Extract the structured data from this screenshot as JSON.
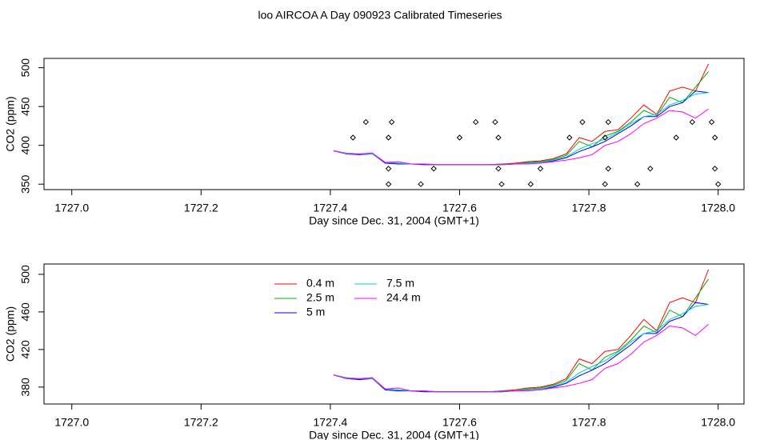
{
  "chart_data": [
    {
      "type": "line",
      "title": "loo AIRCOA A  Day 090923  Calibrated Timeseries",
      "xlabel": "Day since Dec. 31, 2004 (GMT+1)",
      "ylabel": "CO2 (ppm)",
      "xlim": [
        1726.957,
        1728.04
      ],
      "ylim": [
        343,
        512
      ],
      "xticks": [
        {
          "value": 1727,
          "label": "1727.0"
        },
        {
          "value": 1727.2,
          "label": "1727.2"
        },
        {
          "value": 1727.4,
          "label": "1727.4"
        },
        {
          "value": 1727.6,
          "label": "1727.6"
        },
        {
          "value": 1727.8,
          "label": "1727.8"
        },
        {
          "value": 1728,
          "label": "1728.0"
        }
      ],
      "yticks": [
        350,
        400,
        450,
        500
      ],
      "x": [
        1727.405,
        1727.425,
        1727.445,
        1727.465,
        1727.485,
        1727.505,
        1727.525,
        1727.545,
        1727.565,
        1727.585,
        1727.605,
        1727.625,
        1727.645,
        1727.665,
        1727.685,
        1727.705,
        1727.725,
        1727.745,
        1727.765,
        1727.785,
        1727.805,
        1727.825,
        1727.845,
        1727.865,
        1727.885,
        1727.905,
        1727.925,
        1727.945,
        1727.965,
        1727.985
      ],
      "series": [
        {
          "color": "#ff0000",
          "values": [
            393,
            390,
            389,
            390,
            378,
            377,
            376,
            376,
            375,
            375,
            375,
            375,
            375,
            376,
            377,
            379,
            380,
            383,
            389,
            410,
            405,
            418,
            420,
            435,
            452,
            440,
            470,
            475,
            470,
            505
          ]
        },
        {
          "color": "#00b000",
          "values": [
            393,
            389,
            388,
            389,
            378,
            377,
            376,
            376,
            375,
            375,
            375,
            375,
            375,
            376,
            376,
            378,
            379,
            382,
            387,
            405,
            398,
            412,
            418,
            430,
            445,
            438,
            462,
            455,
            475,
            495
          ]
        },
        {
          "color": "#0000ff",
          "values": [
            393,
            389,
            388,
            389,
            377,
            376,
            376,
            375,
            375,
            375,
            375,
            375,
            375,
            375,
            376,
            377,
            378,
            380,
            384,
            392,
            398,
            405,
            415,
            425,
            437,
            437,
            450,
            455,
            470,
            468
          ]
        },
        {
          "color": "#00d0d0",
          "values": [
            393,
            390,
            389,
            389,
            378,
            377,
            376,
            376,
            375,
            375,
            375,
            375,
            375,
            375,
            376,
            377,
            378,
            381,
            385,
            395,
            402,
            408,
            417,
            428,
            437,
            440,
            452,
            458,
            466,
            468
          ]
        },
        {
          "color": "#ff00ff",
          "values": [
            393,
            389,
            389,
            390,
            378,
            379,
            376,
            376,
            375,
            375,
            375,
            375,
            375,
            375,
            376,
            376,
            377,
            379,
            381,
            384,
            388,
            400,
            405,
            415,
            428,
            435,
            445,
            443,
            435,
            447
          ]
        }
      ],
      "points": {
        "x": [
          1727.435,
          1727.455,
          1727.49,
          1727.49,
          1727.49,
          1727.495,
          1727.54,
          1727.56,
          1727.6,
          1727.625,
          1727.655,
          1727.66,
          1727.66,
          1727.665,
          1727.71,
          1727.725,
          1727.77,
          1727.79,
          1727.825,
          1727.83,
          1727.825,
          1727.83,
          1727.875,
          1727.895,
          1727.935,
          1727.96,
          1727.99,
          1727.995,
          1727.995,
          1728.0
        ],
        "y": [
          410,
          430,
          350,
          370,
          410,
          430,
          350,
          370,
          410,
          430,
          430,
          410,
          370,
          350,
          350,
          370,
          410,
          430,
          350,
          370,
          410,
          430,
          350,
          370,
          410,
          430,
          430,
          410,
          370,
          350
        ]
      }
    },
    {
      "type": "line",
      "xlabel": "Day since Dec. 31, 2004 (GMT+1)",
      "ylabel": "CO2 (ppm)",
      "xlim": [
        1726.957,
        1728.04
      ],
      "ylim": [
        362,
        511
      ],
      "xticks": [
        {
          "value": 1727,
          "label": "1727.0"
        },
        {
          "value": 1727.2,
          "label": "1727.2"
        },
        {
          "value": 1727.4,
          "label": "1727.4"
        },
        {
          "value": 1727.6,
          "label": "1727.6"
        },
        {
          "value": 1727.8,
          "label": "1727.8"
        },
        {
          "value": 1728,
          "label": "1728.0"
        }
      ],
      "yticks": [
        380,
        420,
        460,
        500
      ],
      "legend": "top-center",
      "x": [
        1727.405,
        1727.425,
        1727.445,
        1727.465,
        1727.485,
        1727.505,
        1727.525,
        1727.545,
        1727.565,
        1727.585,
        1727.605,
        1727.625,
        1727.645,
        1727.665,
        1727.685,
        1727.705,
        1727.725,
        1727.745,
        1727.765,
        1727.785,
        1727.805,
        1727.825,
        1727.845,
        1727.865,
        1727.885,
        1727.905,
        1727.925,
        1727.945,
        1727.965,
        1727.985
      ],
      "series": [
        {
          "name": "0.4 m",
          "color": "#ff0000",
          "values": [
            393,
            390,
            389,
            390,
            378,
            377,
            376,
            376,
            375,
            375,
            375,
            375,
            375,
            376,
            377,
            379,
            380,
            383,
            389,
            410,
            405,
            418,
            420,
            435,
            452,
            440,
            470,
            475,
            470,
            505
          ]
        },
        {
          "name": "2.5 m",
          "color": "#00b000",
          "values": [
            393,
            389,
            388,
            389,
            378,
            377,
            376,
            376,
            375,
            375,
            375,
            375,
            375,
            376,
            376,
            378,
            379,
            382,
            387,
            405,
            398,
            412,
            418,
            430,
            445,
            438,
            462,
            455,
            475,
            495
          ]
        },
        {
          "name": "5 m",
          "color": "#0000ff",
          "values": [
            393,
            389,
            388,
            389,
            377,
            376,
            376,
            375,
            375,
            375,
            375,
            375,
            375,
            375,
            376,
            377,
            378,
            380,
            384,
            392,
            398,
            405,
            415,
            425,
            437,
            437,
            450,
            455,
            470,
            468
          ]
        },
        {
          "name": "7.5 m",
          "color": "#00d0d0",
          "values": [
            393,
            390,
            389,
            389,
            378,
            377,
            376,
            376,
            375,
            375,
            375,
            375,
            375,
            375,
            376,
            377,
            378,
            381,
            385,
            395,
            402,
            408,
            417,
            428,
            437,
            440,
            452,
            458,
            466,
            468
          ]
        },
        {
          "name": "24.4 m",
          "color": "#ff00ff",
          "values": [
            393,
            389,
            389,
            390,
            378,
            379,
            376,
            376,
            375,
            375,
            375,
            375,
            375,
            375,
            376,
            376,
            377,
            379,
            381,
            384,
            388,
            400,
            405,
            415,
            428,
            435,
            445,
            443,
            435,
            447
          ]
        }
      ]
    }
  ]
}
